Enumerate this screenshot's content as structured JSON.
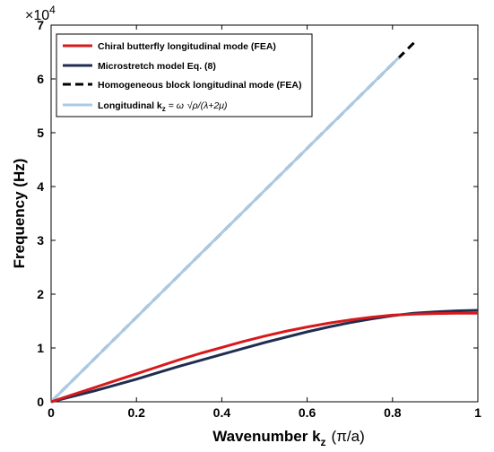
{
  "chart_data": {
    "type": "line",
    "xlabel_prefix": "Wavenumber k",
    "xlabel_sub": "z",
    "xlabel_unit": "(π/a)",
    "ylabel": "Frequency (Hz)",
    "y_multiplier": "×10",
    "y_multiplier_exp": "4",
    "xlim": [
      0,
      1
    ],
    "ylim": [
      0,
      7
    ],
    "xticks": [
      0,
      0.2,
      0.4,
      0.6,
      0.8,
      1
    ],
    "xtick_labels": [
      "0",
      "0.2",
      "0.4",
      "0.6",
      "0.8",
      "1"
    ],
    "yticks": [
      0,
      1,
      2,
      3,
      4,
      5,
      6,
      7
    ],
    "ytick_labels": [
      "0",
      "1",
      "2",
      "3",
      "4",
      "5",
      "6",
      "7"
    ],
    "grid": false,
    "legend_position": "top-left",
    "series": [
      {
        "name": "Chiral butterfly longitudinal mode (FEA)",
        "color": "#d7191c",
        "dash": "solid",
        "x": [
          0,
          0.05,
          0.1,
          0.15,
          0.2,
          0.25,
          0.3,
          0.35,
          0.4,
          0.45,
          0.5,
          0.55,
          0.6,
          0.65,
          0.7,
          0.75,
          0.8,
          0.85,
          0.9,
          0.95,
          1.0
        ],
        "y": [
          0,
          0.13,
          0.26,
          0.39,
          0.52,
          0.65,
          0.78,
          0.9,
          1.01,
          1.12,
          1.22,
          1.31,
          1.39,
          1.46,
          1.52,
          1.57,
          1.61,
          1.63,
          1.64,
          1.645,
          1.645
        ]
      },
      {
        "name": "Microstretch model Eq. (8)",
        "color": "#1f2d4f",
        "dash": "solid",
        "x": [
          0,
          0.05,
          0.1,
          0.15,
          0.2,
          0.25,
          0.3,
          0.35,
          0.4,
          0.45,
          0.5,
          0.55,
          0.6,
          0.65,
          0.7,
          0.75,
          0.8,
          0.85,
          0.9,
          0.95,
          1.0
        ],
        "y": [
          0,
          0.1,
          0.2,
          0.31,
          0.42,
          0.54,
          0.66,
          0.77,
          0.88,
          0.99,
          1.1,
          1.2,
          1.3,
          1.39,
          1.47,
          1.54,
          1.6,
          1.645,
          1.67,
          1.69,
          1.7
        ]
      },
      {
        "name": "Homogeneous block longitudinal mode (FEA)",
        "color": "#000000",
        "dash": "dashed",
        "x": [
          0,
          0.2,
          0.4,
          0.6,
          0.8,
          0.85
        ],
        "y": [
          0,
          1.57,
          3.14,
          4.71,
          6.28,
          6.67
        ]
      },
      {
        "name": "Longitudinal",
        "color": "#a9cbe8",
        "dash": "solid",
        "x": [
          0,
          0.2,
          0.4,
          0.6,
          0.8,
          0.815
        ],
        "y": [
          0,
          1.57,
          3.14,
          4.71,
          6.28,
          6.4
        ]
      }
    ],
    "legend_formula": {
      "prefix": "Longitudinal k",
      "sub": "z",
      "eq": " = ω",
      "sqrt": "√",
      "rest": "ρ/(λ+2μ)"
    }
  }
}
